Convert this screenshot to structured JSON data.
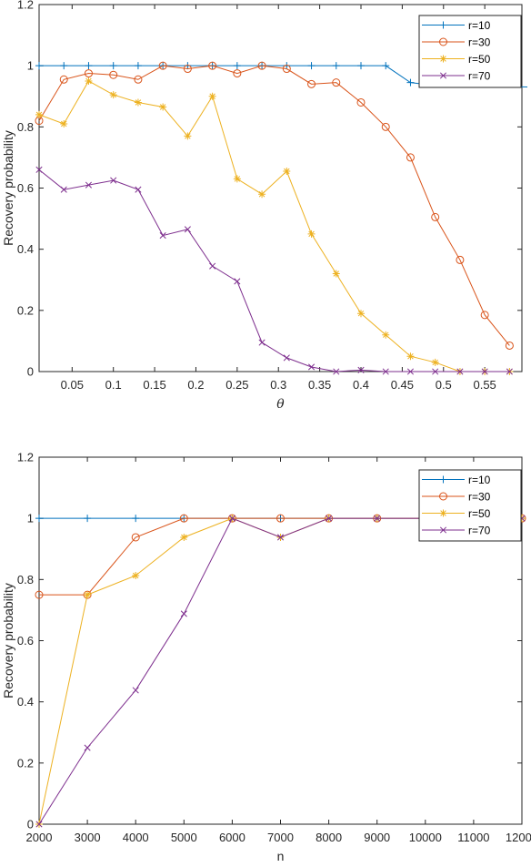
{
  "chart_data": [
    {
      "type": "line",
      "xlabel": "θ",
      "ylabel": "Recovery probability",
      "xlim": [
        0.01,
        0.595
      ],
      "ylim": [
        0,
        1.2
      ],
      "xticks": [
        0.05,
        0.1,
        0.15,
        0.2,
        0.25,
        0.3,
        0.35,
        0.4,
        0.45,
        0.5,
        0.55
      ],
      "xtick_labels": [
        "0.05",
        "0.1",
        "0.15",
        "0.2",
        "0.25",
        "0.3",
        "0.35",
        "0.4",
        "0.45",
        "0.5",
        "0.55"
      ],
      "yticks": [
        0,
        0.2,
        0.4,
        0.6,
        0.8,
        1,
        1.2
      ],
      "ytick_labels": [
        "0",
        "0.2",
        "0.4",
        "0.6",
        "0.8",
        "1",
        "1.2"
      ],
      "grid": false,
      "legend_position": "top-right",
      "x": [
        0.01,
        0.04,
        0.07,
        0.1,
        0.13,
        0.16,
        0.19,
        0.22,
        0.25,
        0.28,
        0.31,
        0.34,
        0.37,
        0.4,
        0.43,
        0.46,
        0.49,
        0.52,
        0.55,
        0.58
      ],
      "series": [
        {
          "name": "r=10",
          "color": "#0072BD",
          "marker": "plus",
          "values": [
            1,
            1,
            1,
            1,
            1,
            1,
            1,
            1,
            1,
            1,
            1,
            1,
            1,
            1,
            1,
            0.945,
            0.935,
            null,
            null,
            null
          ]
        },
        {
          "name": "r=30",
          "color": "#D95319",
          "marker": "circle",
          "values": [
            0.82,
            0.955,
            0.975,
            0.97,
            0.955,
            1,
            0.99,
            1,
            0.975,
            1,
            0.99,
            0.94,
            0.945,
            0.88,
            0.8,
            0.7,
            0.505,
            0.365,
            0.185,
            0.085
          ]
        },
        {
          "name": "r=50",
          "color": "#EDB120",
          "marker": "asterisk",
          "values": [
            0.84,
            0.81,
            0.95,
            0.905,
            0.88,
            0.865,
            0.77,
            0.9,
            0.63,
            0.58,
            0.655,
            0.45,
            0.32,
            0.19,
            0.12,
            0.05,
            0.03,
            0,
            0,
            0
          ]
        },
        {
          "name": "r=70",
          "color": "#7E2F8E",
          "marker": "x",
          "values": [
            0.66,
            0.595,
            0.61,
            0.625,
            0.595,
            0.445,
            0.465,
            0.345,
            0.295,
            0.095,
            0.045,
            0.015,
            0,
            0.005,
            0,
            0,
            0,
            0,
            0,
            0
          ]
        }
      ]
    },
    {
      "type": "line",
      "xlabel": "n",
      "ylabel": "Recovery probability",
      "xlim": [
        2000,
        12000
      ],
      "ylim": [
        0,
        1.2
      ],
      "xticks": [
        2000,
        3000,
        4000,
        5000,
        6000,
        7000,
        8000,
        9000,
        10000,
        11000,
        12000
      ],
      "xtick_labels": [
        "2000",
        "3000",
        "4000",
        "5000",
        "6000",
        "7000",
        "8000",
        "9000",
        "10000",
        "11000",
        "12000"
      ],
      "yticks": [
        0,
        0.2,
        0.4,
        0.6,
        0.8,
        1,
        1.2
      ],
      "ytick_labels": [
        "0",
        "0.2",
        "0.4",
        "0.6",
        "0.8",
        "1",
        "1.2"
      ],
      "grid": false,
      "legend_position": "top-right",
      "x": [
        2000,
        3000,
        4000,
        5000,
        6000,
        7000,
        8000,
        9000,
        10000,
        11000,
        12000
      ],
      "series": [
        {
          "name": "r=10",
          "color": "#0072BD",
          "marker": "plus",
          "values": [
            1,
            1,
            1,
            1,
            1,
            1,
            1,
            1,
            1,
            1,
            1
          ]
        },
        {
          "name": "r=30",
          "color": "#D95319",
          "marker": "circle",
          "values": [
            0.75,
            0.75,
            0.938,
            1,
            1,
            1,
            1,
            1,
            1,
            1,
            1
          ]
        },
        {
          "name": "r=50",
          "color": "#EDB120",
          "marker": "asterisk",
          "values": [
            0,
            0.75,
            0.813,
            0.938,
            1,
            0.938,
            1,
            1,
            1,
            1,
            1
          ]
        },
        {
          "name": "r=70",
          "color": "#7E2F8E",
          "marker": "x",
          "values": [
            0,
            0.25,
            0.438,
            0.688,
            1,
            0.938,
            1,
            1,
            1,
            1,
            1
          ]
        }
      ]
    }
  ]
}
